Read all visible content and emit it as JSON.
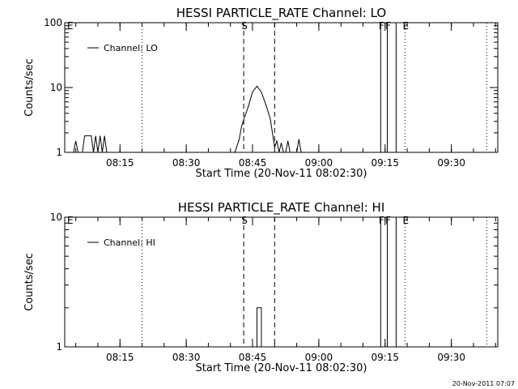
{
  "chart_data": [
    {
      "type": "line",
      "title": "HESSI PARTICLE_RATE Channel: LO",
      "xlabel": "Start Time (20-Nov-11 08:02:30)",
      "ylabel": "Counts/sec",
      "yscale": "log",
      "ylim": [
        1,
        100
      ],
      "yticks": [
        {
          "value": 1,
          "label": "1"
        },
        {
          "value": 10,
          "label": "10"
        },
        {
          "value": 100,
          "label": "100"
        }
      ],
      "xlim": [
        "08:02:30",
        "09:40:30"
      ],
      "xticks": [
        "08:15",
        "08:30",
        "08:45",
        "09:00",
        "09:15",
        "09:30"
      ],
      "legend": {
        "position": "top-left",
        "label": "Channel: LO"
      },
      "series": [
        {
          "name": "Channel: LO",
          "x": [
            "08:02:30",
            "08:04:30",
            "08:05:00",
            "08:05:30",
            "08:06:30",
            "08:07:00",
            "08:07:30",
            "08:08:30",
            "08:09:00",
            "08:09:30",
            "08:10:00",
            "08:10:30",
            "08:11:00",
            "08:11:30",
            "08:12:00",
            "08:12:30",
            "08:41:00",
            "08:42:00",
            "08:42:30",
            "08:43:00",
            "08:44:00",
            "08:45:00",
            "08:46:00",
            "08:47:00",
            "08:48:00",
            "08:49:00",
            "08:49:30",
            "08:50:00",
            "08:50:30",
            "08:51:00",
            "08:51:30",
            "08:52:00",
            "08:52:30",
            "08:53:00",
            "08:53:30",
            "08:54:00",
            "08:54:30",
            "08:55:00",
            "08:55:30",
            "08:56:00",
            "08:56:30",
            "08:57:00",
            "08:57:30",
            "09:13:30"
          ],
          "y": [
            1,
            1,
            1.5,
            1,
            1,
            1.8,
            1.8,
            1.8,
            1,
            1.8,
            1,
            1.8,
            1,
            1.8,
            1,
            1,
            1,
            1.6,
            2.5,
            3.2,
            5,
            8.5,
            10.5,
            8.5,
            5.5,
            3.3,
            2,
            1.2,
            1.5,
            1,
            1.4,
            1,
            1,
            1.5,
            1,
            1,
            1,
            1,
            1.6,
            1,
            1,
            1,
            1,
            1
          ]
        }
      ],
      "markers": [
        {
          "label": "E",
          "time": "08:02:30",
          "style": "dotted"
        },
        {
          "label": "",
          "time": "08:20:00",
          "style": "dotted"
        },
        {
          "label": "S",
          "time": "08:43:00",
          "style": "dashed"
        },
        {
          "label": "",
          "time": "08:50:00",
          "style": "dashed"
        },
        {
          "label": "F",
          "time": "09:14:00",
          "style": "solid"
        },
        {
          "label": "F",
          "time": "09:15:30",
          "style": "solid"
        },
        {
          "label": "",
          "time": "09:17:30",
          "style": "solid"
        },
        {
          "label": "E",
          "time": "09:19:30",
          "style": "dotted"
        },
        {
          "label": "",
          "time": "09:38:00",
          "style": "dotted"
        }
      ]
    },
    {
      "type": "line",
      "title": "HESSI PARTICLE_RATE Channel: HI",
      "xlabel": "Start Time (20-Nov-11 08:02:30)",
      "ylabel": "Counts/sec",
      "yscale": "log",
      "ylim": [
        1,
        10
      ],
      "yticks": [
        {
          "value": 1,
          "label": "1"
        },
        {
          "value": 10,
          "label": "10"
        }
      ],
      "xlim": [
        "08:02:30",
        "09:40:30"
      ],
      "xticks": [
        "08:15",
        "08:30",
        "08:45",
        "09:00",
        "09:15",
        "09:30"
      ],
      "legend": {
        "position": "top-left",
        "label": "Channel: HI"
      },
      "series": [
        {
          "name": "Channel: HI",
          "x": [
            "08:02:30",
            "08:46:00",
            "08:46:00",
            "08:47:00",
            "08:47:00",
            "09:13:30"
          ],
          "y": [
            1,
            1,
            2,
            2,
            1,
            1
          ]
        }
      ],
      "markers": [
        {
          "label": "E",
          "time": "08:02:30",
          "style": "dotted"
        },
        {
          "label": "",
          "time": "08:20:00",
          "style": "dotted"
        },
        {
          "label": "S",
          "time": "08:43:00",
          "style": "dashed"
        },
        {
          "label": "",
          "time": "08:50:00",
          "style": "dashed"
        },
        {
          "label": "F",
          "time": "09:14:00",
          "style": "solid"
        },
        {
          "label": "F",
          "time": "09:15:30",
          "style": "solid"
        },
        {
          "label": "",
          "time": "09:17:30",
          "style": "solid"
        },
        {
          "label": "E",
          "time": "09:19:30",
          "style": "dotted"
        },
        {
          "label": "",
          "time": "09:38:00",
          "style": "dotted"
        }
      ]
    }
  ],
  "footer": {
    "timestamp": "20-Nov-2011 07:07"
  }
}
